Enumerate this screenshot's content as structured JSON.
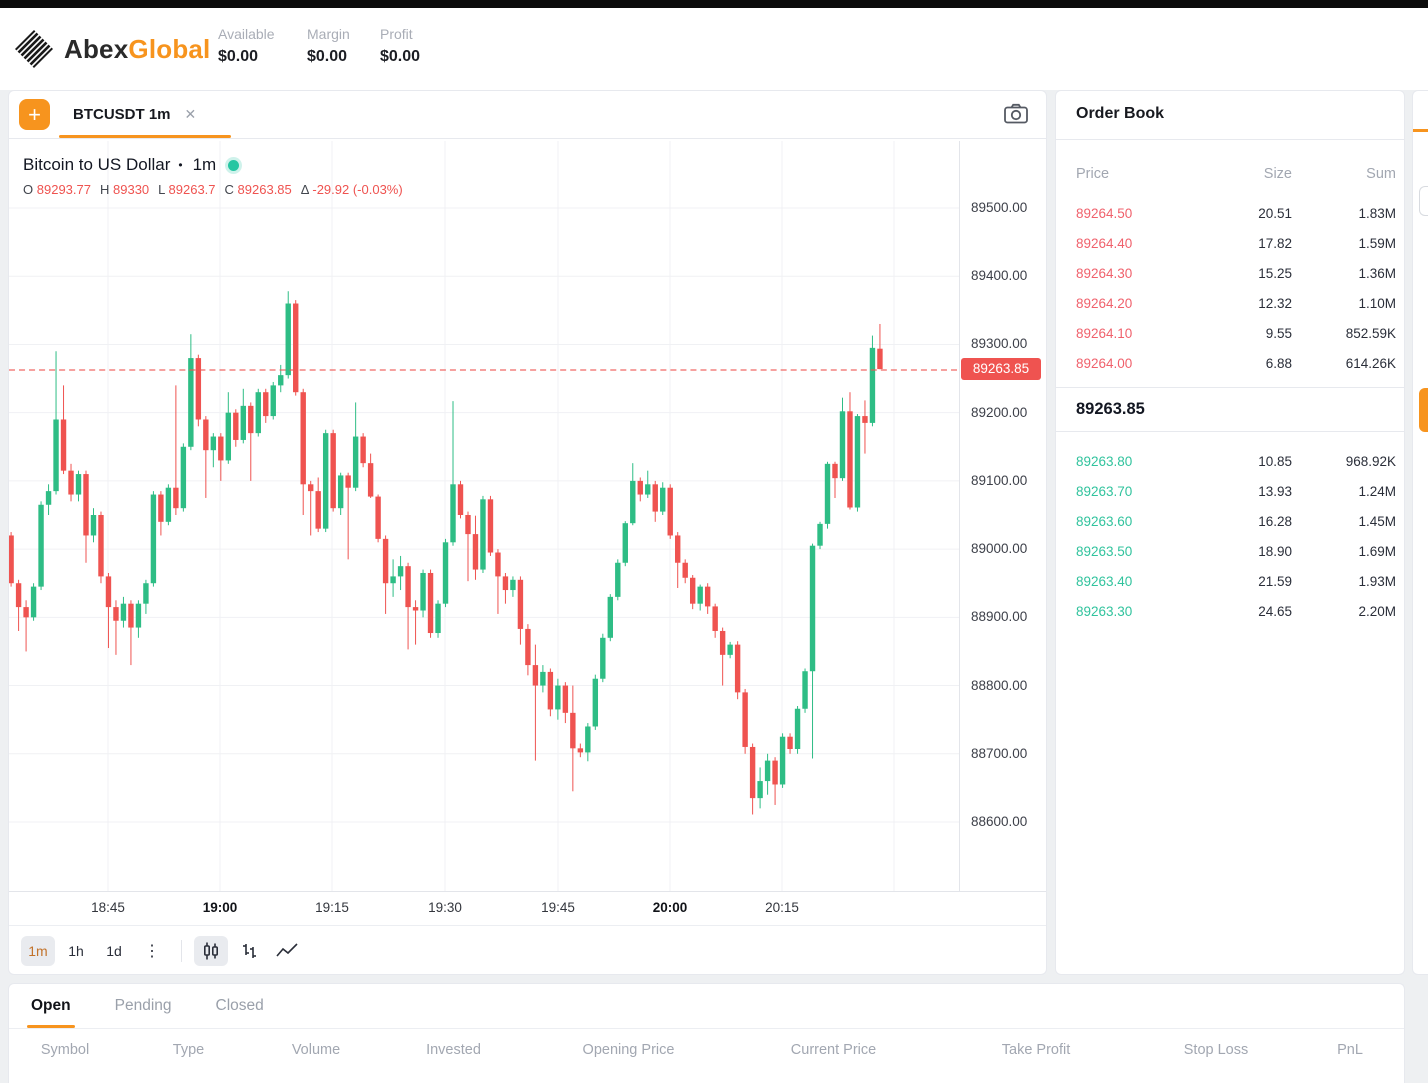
{
  "header": {
    "brand_prefix": "Abex",
    "brand_suffix": "Global",
    "stats": [
      {
        "label": "Available",
        "value": "$0.00"
      },
      {
        "label": "Margin",
        "value": "$0.00"
      },
      {
        "label": "Profit",
        "value": "$0.00"
      }
    ]
  },
  "chart_panel": {
    "add_button": "+",
    "tab_title": "BTCUSDT 1m",
    "close_glyph": "✕",
    "legend_title": "Bitcoin to US Dollar",
    "legend_sep": "•",
    "legend_interval": "1m",
    "ohlc": {
      "o_label": "O",
      "o": "89293.77",
      "h_label": "H",
      "h": "89330",
      "l_label": "L",
      "l": "89263.7",
      "c_label": "C",
      "c": "89263.85",
      "d_label": "Δ",
      "d": "-29.92 (-0.03%)"
    },
    "toolbar": {
      "intervals": [
        "1m",
        "1h",
        "1d"
      ],
      "active_interval": "1m",
      "more_glyph": "⋮"
    },
    "last_price_label": "89263.85"
  },
  "chart_data": {
    "type": "candlestick",
    "symbol": "BTCUSDT",
    "interval": "1m",
    "title": "Bitcoin to US Dollar",
    "ylim": [
      88560,
      89560
    ],
    "grid": true,
    "price_ticks": [
      "89500.00",
      "89400.00",
      "89300.00",
      "89200.00",
      "89100.00",
      "89000.00",
      "88900.00",
      "88800.00",
      "88700.00",
      "88600.00"
    ],
    "time_ticks": [
      {
        "label": "18:45",
        "bold": false
      },
      {
        "label": "19:00",
        "bold": true
      },
      {
        "label": "19:15",
        "bold": false
      },
      {
        "label": "19:30",
        "bold": false
      },
      {
        "label": "19:45",
        "bold": false
      },
      {
        "label": "20:00",
        "bold": true
      },
      {
        "label": "20:15",
        "bold": false
      }
    ],
    "last_price": 89263.85,
    "last_candle": {
      "open": 89293.77,
      "high": 89330,
      "low": 89263.7,
      "close": 89263.85,
      "change": -29.92,
      "change_pct": -0.03
    },
    "candles": [
      [
        89020,
        89025,
        88945,
        88950
      ],
      [
        88950,
        88955,
        88880,
        88915
      ],
      [
        88915,
        88925,
        88850,
        88900
      ],
      [
        88900,
        88950,
        88895,
        88945
      ],
      [
        88945,
        89070,
        88940,
        89065
      ],
      [
        89065,
        89095,
        89050,
        89085
      ],
      [
        89085,
        89290,
        89080,
        89190
      ],
      [
        89190,
        89240,
        89110,
        89115
      ],
      [
        89115,
        89125,
        89070,
        89080
      ],
      [
        89080,
        89115,
        89070,
        89110
      ],
      [
        89110,
        89115,
        88980,
        89020
      ],
      [
        89020,
        89060,
        89010,
        89050
      ],
      [
        89050,
        89055,
        88950,
        88960
      ],
      [
        88960,
        88965,
        88855,
        88915
      ],
      [
        88915,
        88925,
        88845,
        88895
      ],
      [
        88895,
        88930,
        88885,
        88920
      ],
      [
        88920,
        88925,
        88830,
        88885
      ],
      [
        88885,
        88925,
        88870,
        88920
      ],
      [
        88920,
        88955,
        88905,
        88950
      ],
      [
        88950,
        89085,
        88945,
        89080
      ],
      [
        89080,
        89085,
        89020,
        89040
      ],
      [
        89040,
        89095,
        89035,
        89090
      ],
      [
        89090,
        89240,
        89050,
        89060
      ],
      [
        89060,
        89155,
        89055,
        89150
      ],
      [
        89150,
        89315,
        89145,
        89280
      ],
      [
        89280,
        89285,
        89180,
        89190
      ],
      [
        89190,
        89195,
        89075,
        89145
      ],
      [
        89145,
        89170,
        89120,
        89165
      ],
      [
        89165,
        89170,
        89100,
        89130
      ],
      [
        89130,
        89230,
        89125,
        89200
      ],
      [
        89200,
        89205,
        89150,
        89160
      ],
      [
        89160,
        89235,
        89155,
        89210
      ],
      [
        89210,
        89215,
        89100,
        89170
      ],
      [
        89170,
        89235,
        89165,
        89230
      ],
      [
        89230,
        89235,
        89185,
        89195
      ],
      [
        89195,
        89245,
        89190,
        89240
      ],
      [
        89240,
        89270,
        89230,
        89255
      ],
      [
        89255,
        89378,
        89250,
        89360
      ],
      [
        89360,
        89365,
        89225,
        89230
      ],
      [
        89230,
        89235,
        89050,
        89095
      ],
      [
        89095,
        89100,
        89020,
        89085
      ],
      [
        89085,
        89105,
        89025,
        89030
      ],
      [
        89030,
        89175,
        89025,
        89170
      ],
      [
        89170,
        89175,
        89055,
        89060
      ],
      [
        89060,
        89112,
        89050,
        89108
      ],
      [
        89108,
        89112,
        88985,
        89090
      ],
      [
        89090,
        89215,
        89085,
        89165
      ],
      [
        89165,
        89170,
        89120,
        89126
      ],
      [
        89126,
        89140,
        89075,
        89077
      ],
      [
        89077,
        89080,
        89010,
        89015
      ],
      [
        89015,
        89020,
        88905,
        88950
      ],
      [
        88950,
        88985,
        88930,
        88960
      ],
      [
        88960,
        88990,
        88940,
        88975
      ],
      [
        88975,
        88980,
        88853,
        88915
      ],
      [
        88915,
        88925,
        88860,
        88910
      ],
      [
        88910,
        88970,
        88900,
        88965
      ],
      [
        88965,
        88970,
        88870,
        88877
      ],
      [
        88877,
        88925,
        88870,
        88920
      ],
      [
        88920,
        89015,
        88915,
        89010
      ],
      [
        89010,
        89217,
        89005,
        89095
      ],
      [
        89095,
        89100,
        89045,
        89050
      ],
      [
        89050,
        89055,
        88953,
        89022
      ],
      [
        89022,
        89049,
        88955,
        88970
      ],
      [
        88970,
        89078,
        88965,
        89073
      ],
      [
        89073,
        89078,
        88990,
        88995
      ],
      [
        88995,
        89000,
        88905,
        88960
      ],
      [
        88960,
        88965,
        88920,
        88940
      ],
      [
        88940,
        88960,
        88930,
        88955
      ],
      [
        88955,
        88960,
        88860,
        88883
      ],
      [
        88883,
        88890,
        88815,
        88830
      ],
      [
        88830,
        88860,
        88690,
        88800
      ],
      [
        88800,
        88830,
        88790,
        88820
      ],
      [
        88820,
        88825,
        88755,
        88765
      ],
      [
        88765,
        88810,
        88750,
        88800
      ],
      [
        88800,
        88805,
        88745,
        88760
      ],
      [
        88760,
        88800,
        88645,
        88708
      ],
      [
        88708,
        88715,
        88695,
        88702
      ],
      [
        88702,
        88745,
        88689,
        88740
      ],
      [
        88740,
        88816,
        88735,
        88810
      ],
      [
        88810,
        88876,
        88805,
        88870
      ],
      [
        88870,
        88934,
        88865,
        88930
      ],
      [
        88930,
        88985,
        88925,
        88980
      ],
      [
        88980,
        89041,
        88975,
        89038
      ],
      [
        89038,
        89126,
        89035,
        89100
      ],
      [
        89100,
        89105,
        89070,
        89080
      ],
      [
        89080,
        89115,
        89075,
        89095
      ],
      [
        89095,
        89100,
        89040,
        89055
      ],
      [
        89055,
        89098,
        89050,
        89090
      ],
      [
        89090,
        89095,
        89015,
        89020
      ],
      [
        89020,
        89025,
        88943,
        88980
      ],
      [
        88980,
        88985,
        88950,
        88958
      ],
      [
        88958,
        88962,
        88912,
        88920
      ],
      [
        88920,
        88948,
        88910,
        88945
      ],
      [
        88945,
        88950,
        88905,
        88916
      ],
      [
        88916,
        88920,
        88870,
        88880
      ],
      [
        88880,
        88885,
        88800,
        88845
      ],
      [
        88845,
        88864,
        88840,
        88860
      ],
      [
        88860,
        88865,
        88780,
        88790
      ],
      [
        88790,
        88795,
        88700,
        88710
      ],
      [
        88710,
        88715,
        88611,
        88635
      ],
      [
        88635,
        88680,
        88620,
        88660
      ],
      [
        88660,
        88700,
        88640,
        88690
      ],
      [
        88690,
        88695,
        88625,
        88655
      ],
      [
        88655,
        88730,
        88650,
        88725
      ],
      [
        88725,
        88730,
        88700,
        88707
      ],
      [
        88707,
        88770,
        88700,
        88766
      ],
      [
        88766,
        88825,
        88760,
        88821
      ],
      [
        88821,
        89008,
        88693,
        89005
      ],
      [
        89005,
        89040,
        89000,
        89037
      ],
      [
        89037,
        89128,
        89030,
        89125
      ],
      [
        89125,
        89128,
        89075,
        89104
      ],
      [
        89104,
        89222,
        89100,
        89202
      ],
      [
        89202,
        89230,
        89058,
        89061
      ],
      [
        89061,
        89198,
        89055,
        89195
      ],
      [
        89195,
        89218,
        89140,
        89185
      ],
      [
        89185,
        89313,
        89180,
        89295
      ],
      [
        89293.77,
        89330,
        89263.7,
        89263.85
      ]
    ]
  },
  "order_book": {
    "title": "Order Book",
    "columns": [
      "Price",
      "Size",
      "Sum"
    ],
    "asks": [
      {
        "price": "89264.50",
        "size": "20.51",
        "sum": "1.83M"
      },
      {
        "price": "89264.40",
        "size": "17.82",
        "sum": "1.59M"
      },
      {
        "price": "89264.30",
        "size": "15.25",
        "sum": "1.36M"
      },
      {
        "price": "89264.20",
        "size": "12.32",
        "sum": "1.10M"
      },
      {
        "price": "89264.10",
        "size": "9.55",
        "sum": "852.59K"
      },
      {
        "price": "89264.00",
        "size": "6.88",
        "sum": "614.26K"
      }
    ],
    "mid_price": "89263.85",
    "bids": [
      {
        "price": "89263.80",
        "size": "10.85",
        "sum": "968.92K"
      },
      {
        "price": "89263.70",
        "size": "13.93",
        "sum": "1.24M"
      },
      {
        "price": "89263.60",
        "size": "16.28",
        "sum": "1.45M"
      },
      {
        "price": "89263.50",
        "size": "18.90",
        "sum": "1.69M"
      },
      {
        "price": "89263.40",
        "size": "21.59",
        "sum": "1.93M"
      },
      {
        "price": "89263.30",
        "size": "24.65",
        "sum": "2.20M"
      }
    ]
  },
  "positions": {
    "tabs": [
      "Open",
      "Pending",
      "Closed"
    ],
    "active_tab": "Open",
    "columns": [
      "Symbol",
      "Type",
      "Volume",
      "Invested",
      "Opening Price",
      "Current Price",
      "Take Profit",
      "Stop Loss",
      "PnL"
    ]
  },
  "colors": {
    "accent_orange": "#f7941e",
    "candle_up": "#2ebd85",
    "candle_down": "#ef5350",
    "ask_red": "#f0616c",
    "bid_green": "#31c39d",
    "badge_red": "#ef5350"
  }
}
